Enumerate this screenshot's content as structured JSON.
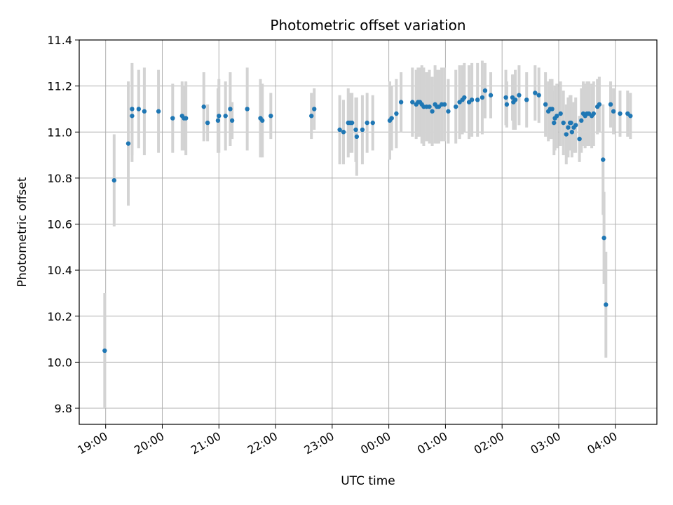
{
  "chart_data": {
    "type": "scatter",
    "title": "Photometric offset variation",
    "xlabel": "UTC time",
    "ylabel": "Photometric offset",
    "x_unit": "UTC time (hours)",
    "xlim": [
      "18:32",
      "04:44"
    ],
    "ylim": [
      9.73,
      11.4
    ],
    "x_ticks": [
      "19:00",
      "20:00",
      "21:00",
      "22:00",
      "23:00",
      "00:00",
      "01:00",
      "02:00",
      "03:00",
      "04:00"
    ],
    "y_ticks": [
      "9.8",
      "10.0",
      "10.2",
      "10.4",
      "10.6",
      "10.8",
      "11.0",
      "11.2",
      "11.4"
    ],
    "grid": true,
    "point_color": "#1f77b4",
    "errorbar_color": "#d3d3d3",
    "series": [
      {
        "x": [
          "18:59",
          "19:09",
          "19:24",
          "19:28",
          "19:28",
          "19:35",
          "19:41",
          "19:56",
          "20:11",
          "20:21",
          "20:23",
          "20:25",
          "20:44",
          "20:48",
          "20:59",
          "21:00",
          "21:07",
          "21:12",
          "21:14",
          "21:30",
          "21:44",
          "21:46",
          "21:55",
          "22:38",
          "22:41",
          "23:08",
          "23:12",
          "23:17",
          "23:19",
          "23:21",
          "23:25",
          "23:26",
          "23:32",
          "23:37",
          "23:43",
          "00:01",
          "00:03",
          "00:08",
          "00:13",
          "00:25",
          "00:29",
          "00:31",
          "00:33",
          "00:35",
          "00:37",
          "00:40",
          "00:43",
          "00:46",
          "00:49",
          "00:51",
          "00:53",
          "00:56",
          "00:59",
          "01:03",
          "01:11",
          "01:15",
          "01:18",
          "01:20",
          "01:25",
          "01:28",
          "01:34",
          "01:39",
          "01:42",
          "01:48",
          "02:04",
          "02:05",
          "02:11",
          "02:12",
          "02:14",
          "02:18",
          "02:26",
          "02:35",
          "02:39",
          "02:46",
          "02:49",
          "02:51",
          "02:53",
          "02:55",
          "02:56",
          "02:58",
          "03:02",
          "03:05",
          "03:08",
          "03:10",
          "03:12",
          "03:13",
          "03:14",
          "03:16",
          "03:18",
          "03:22",
          "03:24",
          "03:26",
          "03:28",
          "03:30",
          "03:32",
          "03:35",
          "03:37",
          "03:41",
          "03:43",
          "03:47",
          "03:48",
          "03:50",
          "03:55",
          "03:58",
          "04:05",
          "04:13",
          "04:16"
        ],
        "y": [
          10.05,
          10.79,
          10.95,
          11.07,
          11.1,
          11.1,
          11.09,
          11.09,
          11.06,
          11.07,
          11.06,
          11.06,
          11.11,
          11.04,
          11.05,
          11.07,
          11.07,
          11.1,
          11.05,
          11.1,
          11.06,
          11.05,
          11.07,
          11.07,
          11.1,
          11.01,
          11.0,
          11.04,
          11.04,
          11.04,
          11.01,
          10.98,
          11.01,
          11.04,
          11.04,
          11.05,
          11.06,
          11.08,
          11.13,
          11.13,
          11.12,
          11.13,
          11.13,
          11.12,
          11.11,
          11.11,
          11.11,
          11.09,
          11.12,
          11.11,
          11.11,
          11.12,
          11.12,
          11.09,
          11.11,
          11.13,
          11.14,
          11.15,
          11.13,
          11.14,
          11.14,
          11.15,
          11.18,
          11.16,
          11.15,
          11.12,
          11.15,
          11.13,
          11.14,
          11.16,
          11.14,
          11.17,
          11.16,
          11.12,
          11.09,
          11.1,
          11.1,
          11.04,
          11.06,
          11.07,
          11.08,
          11.04,
          10.99,
          11.02,
          11.04,
          11.04,
          11.0,
          11.02,
          11.03,
          10.97,
          11.05,
          11.08,
          11.07,
          11.08,
          11.08,
          11.07,
          11.08,
          11.11,
          11.12,
          10.88,
          10.54,
          10.25,
          11.12,
          11.09,
          11.08,
          11.08,
          11.07
        ],
        "yerr": [
          0.25,
          0.2,
          0.27,
          0.2,
          0.2,
          0.17,
          0.19,
          0.18,
          0.15,
          0.15,
          0.14,
          0.16,
          0.15,
          0.08,
          0.14,
          0.16,
          0.15,
          0.16,
          0.08,
          0.18,
          0.17,
          0.16,
          0.1,
          0.1,
          0.09,
          0.15,
          0.14,
          0.15,
          0.13,
          0.13,
          0.14,
          0.17,
          0.15,
          0.13,
          0.12,
          0.17,
          0.14,
          0.15,
          0.13,
          0.15,
          0.15,
          0.15,
          0.15,
          0.17,
          0.17,
          0.15,
          0.16,
          0.15,
          0.17,
          0.16,
          0.16,
          0.16,
          0.16,
          0.14,
          0.16,
          0.16,
          0.15,
          0.15,
          0.16,
          0.16,
          0.16,
          0.16,
          0.12,
          0.1,
          0.12,
          0.1,
          0.1,
          0.12,
          0.13,
          0.13,
          0.12,
          0.12,
          0.12,
          0.14,
          0.13,
          0.13,
          0.13,
          0.14,
          0.14,
          0.14,
          0.14,
          0.14,
          0.13,
          0.13,
          0.12,
          0.12,
          0.11,
          0.11,
          0.12,
          0.1,
          0.14,
          0.14,
          0.14,
          0.14,
          0.14,
          0.14,
          0.14,
          0.12,
          0.12,
          0.24,
          0.2,
          0.23,
          0.1,
          0.1,
          0.1,
          0.1,
          0.1
        ]
      }
    ]
  }
}
